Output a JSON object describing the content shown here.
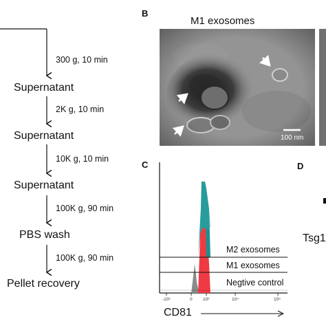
{
  "flowchart": {
    "steps": [
      "Supernatant",
      "Supernatant",
      "Supernatant",
      "PBS wash",
      "Pellet recovery"
    ],
    "conditions": [
      "300 g, 10 min",
      "2K g, 10 min",
      "10K g, 10 min",
      "100K g, 90 min",
      "100K g, 90 min"
    ]
  },
  "panel_b": {
    "letter": "B",
    "title": "M1 exosomes",
    "scale_bar": "100 nm"
  },
  "panel_c": {
    "letter": "C",
    "x_axis_title": "CD81",
    "x_tick_labels": [
      "-10³",
      "0",
      "10³",
      "10⁴",
      "10⁵"
    ],
    "tracks": [
      "M2 exosomes",
      "M1 exosomes",
      "Negtive control"
    ]
  },
  "panel_d": {
    "letter": "D",
    "partial_label": "Tsg1"
  },
  "colors": {
    "m2": "#1f8f8f",
    "m1": "#f03a43",
    "negative": "#8a8a8a",
    "micrograph_bg": "#8c8c8c"
  },
  "icons": [
    "arrow-down-icon",
    "white-arrow-icon"
  ]
}
